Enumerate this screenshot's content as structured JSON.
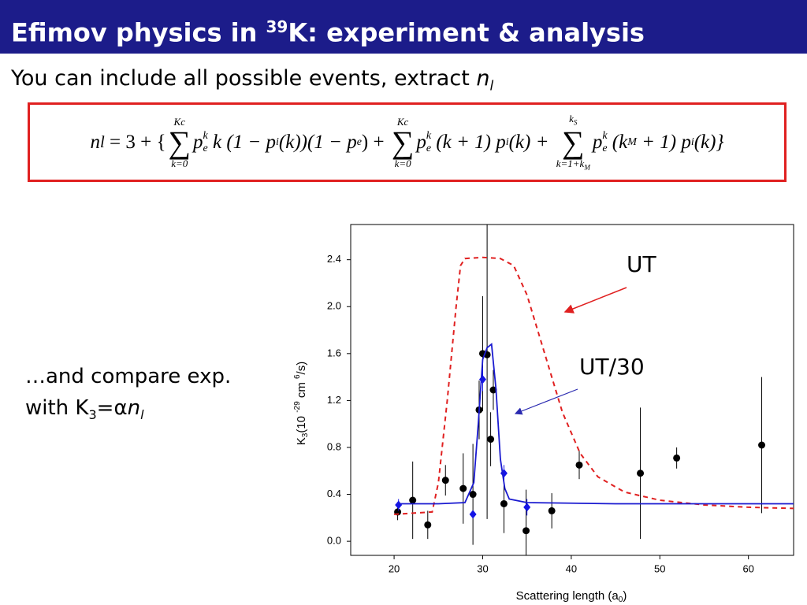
{
  "slide": {
    "title": [
      "Efimov physics in ",
      "39",
      "K: experiment & analysis"
    ],
    "subtitle": [
      "You can include all possible events, extract ",
      "n",
      "l"
    ],
    "formula": [
      "n",
      "l",
      " = 3 + {",
      "Kc",
      "∑",
      "k=0",
      "p",
      "e",
      "k",
      " k (1 − ",
      "p",
      "i",
      "(k))(1 − ",
      "p",
      "e",
      ") + ",
      "Kc",
      "∑",
      "k=0",
      "p",
      "e",
      "k",
      " (k + 1) ",
      "p",
      "i",
      "(k) + ",
      "k",
      "S",
      "∑",
      "k=1+k",
      "M",
      "p",
      "e",
      "k",
      " (k",
      "M",
      " + 1) ",
      "p",
      "i",
      "(k)}"
    ],
    "side_text": [
      "…and compare exp.",
      "with K",
      "3",
      "=α",
      "n",
      "l"
    ]
  },
  "chart_data": {
    "type": "scatter",
    "xlabel": [
      "Scattering length (a",
      "0",
      ")"
    ],
    "ylabel": [
      "K",
      "3",
      "(10 ",
      "-29",
      " cm ",
      "6",
      "/s)"
    ],
    "xlim": [
      15.1,
      65.1
    ],
    "ylim": [
      -0.12,
      2.7
    ],
    "xticks": [
      20,
      30,
      40,
      50,
      60
    ],
    "yticks": [
      {
        "value": 0,
        "label": "0.0"
      },
      0.4,
      0.8,
      1.2,
      1.6,
      {
        "value": 2,
        "label": "2.0"
      },
      2.4
    ],
    "series": [
      {
        "marker": "circle",
        "color": "#000000",
        "x": [
          20.4,
          22.1,
          23.8,
          25.8,
          27.8,
          28.9,
          29.6,
          30.0,
          30.5,
          30.9,
          31.2,
          32.4,
          34.9,
          37.8,
          40.9,
          47.8,
          51.9,
          61.5
        ],
        "values": [
          0.25,
          0.35,
          0.14,
          0.52,
          0.45,
          0.4,
          1.12,
          1.6,
          1.59,
          0.87,
          1.29,
          0.32,
          0.09,
          0.26,
          0.65,
          0.58,
          0.71,
          0.82
        ],
        "errors": [
          0.07,
          0.33,
          0.12,
          0.13,
          0.3,
          0.43,
          0.25,
          0.49,
          1.4,
          0.23,
          0.17,
          0.25,
          0.35,
          0.15,
          0.12,
          0.56,
          0.09,
          0.58
        ]
      },
      {
        "marker": "diamond",
        "color": "#1414e6",
        "x": [
          20.5,
          28.9,
          30.0,
          32.4,
          35.0
        ],
        "values": [
          0.31,
          0.23,
          1.38,
          0.58,
          0.29
        ],
        "errors": [
          0.05,
          0,
          0.1,
          0.07,
          0.07
        ]
      },
      {
        "name": "UT",
        "line_style": "dashed",
        "color": "#e02020",
        "x": [
          20.0,
          24.3,
          25,
          26,
          27,
          27.5,
          28,
          30,
          32,
          33.5,
          35,
          37,
          39,
          41,
          43,
          46,
          50,
          55,
          60,
          65.1
        ],
        "values": [
          0.23,
          0.25,
          0.5,
          1.2,
          2.0,
          2.35,
          2.41,
          2.42,
          2.41,
          2.35,
          2.1,
          1.6,
          1.1,
          0.75,
          0.55,
          0.42,
          0.35,
          0.31,
          0.29,
          0.28
        ]
      },
      {
        "name": "UT/30",
        "line_style": "solid",
        "color": "#1a1ad0",
        "x": [
          20.4,
          25,
          28,
          29,
          29.5,
          30,
          30.5,
          31,
          31.5,
          32,
          32.5,
          33,
          35,
          45,
          65.1
        ],
        "values": [
          0.32,
          0.32,
          0.33,
          0.5,
          1.0,
          1.55,
          1.65,
          1.68,
          1.3,
          0.7,
          0.45,
          0.36,
          0.33,
          0.32,
          0.32
        ]
      }
    ]
  }
}
